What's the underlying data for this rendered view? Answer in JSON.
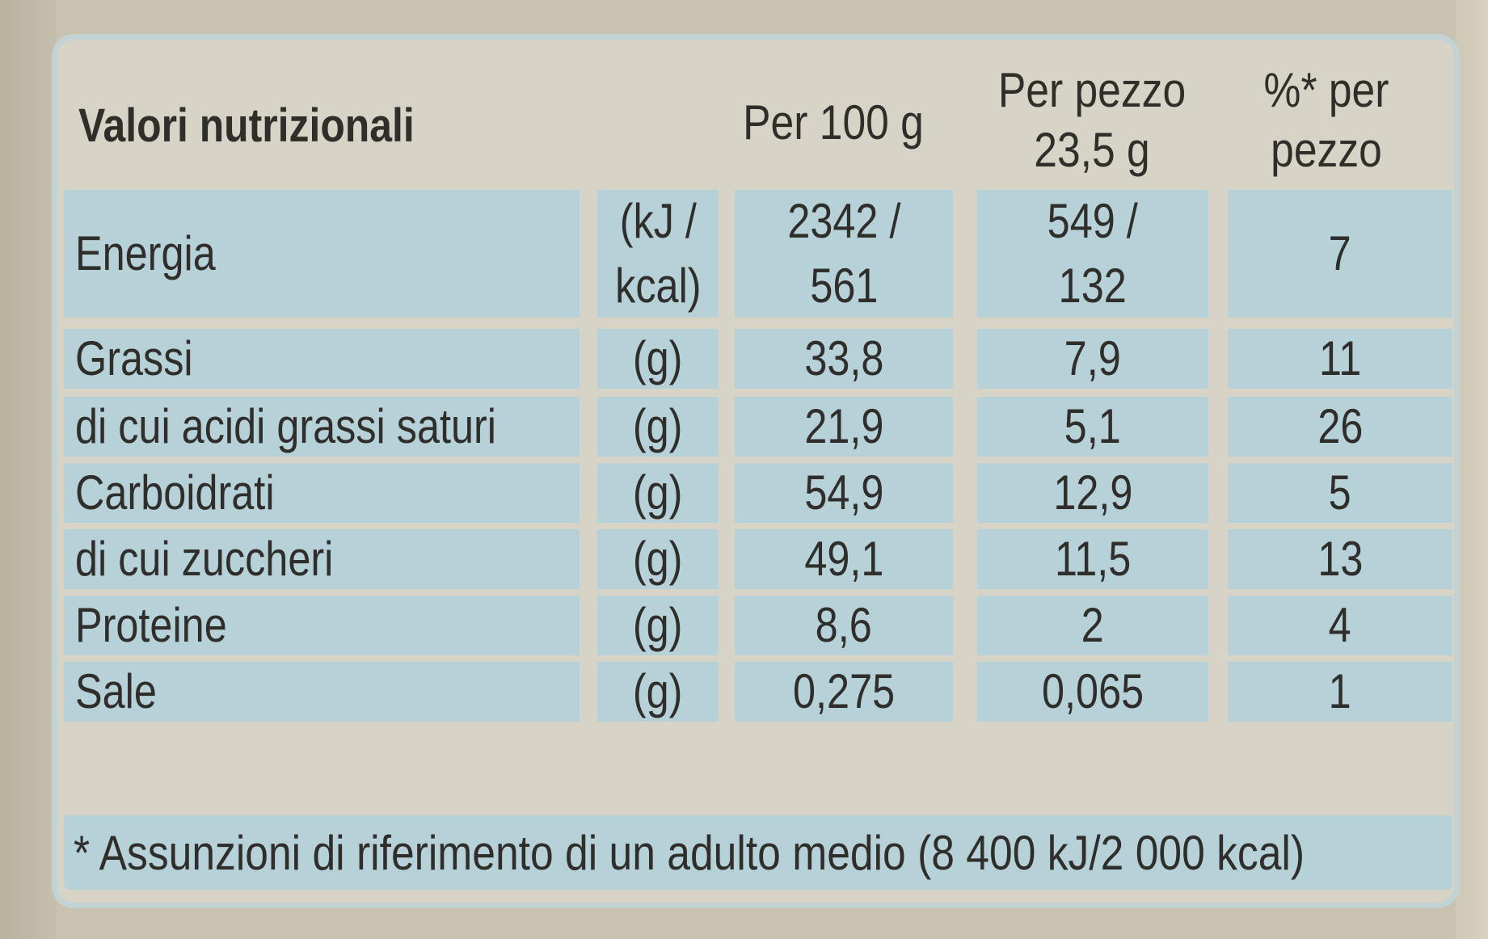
{
  "table": {
    "title": "Valori nutrizionali",
    "col_per100": "Per 100 g",
    "col_perpezzo": "Per pezzo\n23,5 g",
    "col_pct": "%* per\npezzo",
    "rows": [
      {
        "label": "Energia",
        "unit": "(kJ /\nkcal)",
        "per100": "2342 /\n561",
        "perpezzo": "549 /\n132",
        "pct": "7"
      },
      {
        "label": "Grassi",
        "unit": "(g)",
        "per100": "33,8",
        "perpezzo": "7,9",
        "pct": "11"
      },
      {
        "label": "di cui acidi grassi saturi",
        "unit": "(g)",
        "per100": "21,9",
        "perpezzo": "5,1",
        "pct": "26"
      },
      {
        "label": "Carboidrati",
        "unit": "(g)",
        "per100": "54,9",
        "perpezzo": "12,9",
        "pct": "5"
      },
      {
        "label": "di cui zuccheri",
        "unit": "(g)",
        "per100": "49,1",
        "perpezzo": "11,5",
        "pct": "13"
      },
      {
        "label": "Proteine",
        "unit": "(g)",
        "per100": "8,6",
        "perpezzo": "2",
        "pct": "4"
      },
      {
        "label": "Sale",
        "unit": "(g)",
        "per100": "0,275",
        "perpezzo": "0,065",
        "pct": "1"
      }
    ],
    "footnote": "* Assunzioni di riferimento di un adulto medio (8 400 kJ/2 000 kcal)"
  }
}
